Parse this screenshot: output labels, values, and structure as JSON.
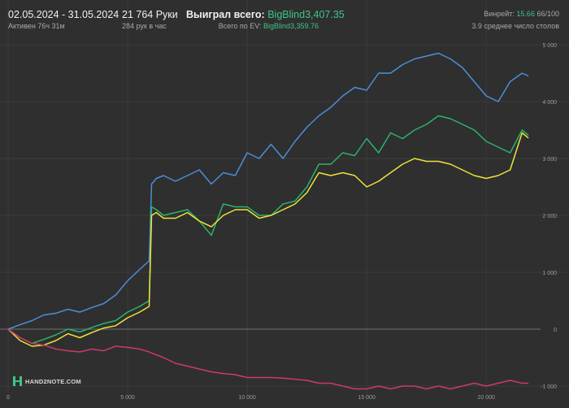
{
  "header": {
    "date_range": "02.05.2024 - 31.05.2024",
    "active_time": "Активен 76ч 31м",
    "hands": "21 764 Руки",
    "hands_per_hour": "284 рук в час",
    "won_label": "Выиграл всего:",
    "won_value": "BigBlind3,407.35",
    "ev_label": "Всего по EV:",
    "ev_value": "BigBlind3,359.76",
    "winrate_label": "Винрейт:",
    "winrate_value": "15.66",
    "winrate_of": "66/100",
    "tables": "3.9 среднее число столов"
  },
  "logo": {
    "text": "HAND2NOTE.COM",
    "icon": "hand2note-logo-icon"
  },
  "colors": {
    "background": "#2f2f2f",
    "grid": "#3b3b3b",
    "blue": "#4a8fd9",
    "green": "#2db36b",
    "yellow": "#f0e33a",
    "red": "#cc3a66",
    "accent": "#3fc487"
  },
  "chart_data": {
    "type": "line",
    "title": "",
    "xlabel": "",
    "ylabel": "",
    "xlim": [
      0,
      22000
    ],
    "ylim": [
      -1100,
      5100
    ],
    "x_ticks": [
      0,
      5000,
      10000,
      15000,
      20000
    ],
    "x_tick_labels": [
      "0",
      "5 000",
      "10 000",
      "15 000",
      "20 000"
    ],
    "y_ticks": [
      5000,
      4000,
      3000,
      2000,
      1000,
      0,
      -1000
    ],
    "y_tick_labels": [
      "5 000",
      "4 000",
      "3 000",
      "2 000",
      "1 000",
      "0",
      "-1 000"
    ],
    "y_axis_side": "right",
    "grid": true,
    "x": [
      0,
      500,
      1000,
      1500,
      2000,
      2500,
      3000,
      3500,
      4000,
      4500,
      5000,
      5500,
      5900,
      6000,
      6200,
      6500,
      7000,
      7500,
      8000,
      8500,
      9000,
      9500,
      10000,
      10500,
      11000,
      11500,
      12000,
      12500,
      13000,
      13500,
      14000,
      14500,
      15000,
      15500,
      16000,
      16500,
      17000,
      17500,
      18000,
      18500,
      19000,
      19500,
      20000,
      20500,
      21000,
      21500,
      21764
    ],
    "series": [
      {
        "color": "#4a8fd9",
        "values": [
          0,
          80,
          150,
          250,
          280,
          350,
          300,
          380,
          450,
          600,
          850,
          1050,
          1200,
          2550,
          2650,
          2700,
          2600,
          2700,
          2800,
          2550,
          2750,
          2700,
          3100,
          3000,
          3250,
          3000,
          3300,
          3550,
          3750,
          3900,
          4100,
          4250,
          4200,
          4500,
          4500,
          4650,
          4750,
          4800,
          4850,
          4750,
          4600,
          4350,
          4100,
          4000,
          4350,
          4500,
          4450
        ]
      },
      {
        "color": "#2db36b",
        "values": [
          0,
          -150,
          -250,
          -180,
          -100,
          0,
          -50,
          30,
          100,
          150,
          300,
          400,
          500,
          2150,
          2100,
          2000,
          2050,
          2100,
          1900,
          1650,
          2200,
          2150,
          2150,
          2000,
          2000,
          2200,
          2250,
          2500,
          2900,
          2900,
          3100,
          3050,
          3350,
          3100,
          3450,
          3350,
          3500,
          3600,
          3750,
          3700,
          3600,
          3500,
          3300,
          3200,
          3100,
          3500,
          3407
        ]
      },
      {
        "color": "#f0e33a",
        "values": [
          0,
          -200,
          -300,
          -280,
          -200,
          -80,
          -150,
          -60,
          20,
          60,
          200,
          300,
          400,
          2000,
          2050,
          1950,
          1950,
          2050,
          1900,
          1800,
          2000,
          2100,
          2100,
          1950,
          2000,
          2100,
          2200,
          2400,
          2750,
          2700,
          2750,
          2700,
          2500,
          2600,
          2750,
          2900,
          3000,
          2950,
          2950,
          2900,
          2800,
          2700,
          2650,
          2700,
          2800,
          3450,
          3360
        ]
      },
      {
        "color": "#cc3a66",
        "values": [
          0,
          -150,
          -250,
          -280,
          -350,
          -380,
          -400,
          -350,
          -380,
          -300,
          -320,
          -350,
          -400,
          -420,
          -450,
          -500,
          -600,
          -650,
          -700,
          -750,
          -780,
          -800,
          -850,
          -850,
          -850,
          -860,
          -880,
          -900,
          -950,
          -950,
          -1000,
          -1050,
          -1050,
          -1000,
          -1050,
          -1000,
          -1000,
          -1050,
          -1000,
          -1050,
          -1000,
          -950,
          -1000,
          -950,
          -900,
          -950,
          -950
        ]
      }
    ]
  }
}
